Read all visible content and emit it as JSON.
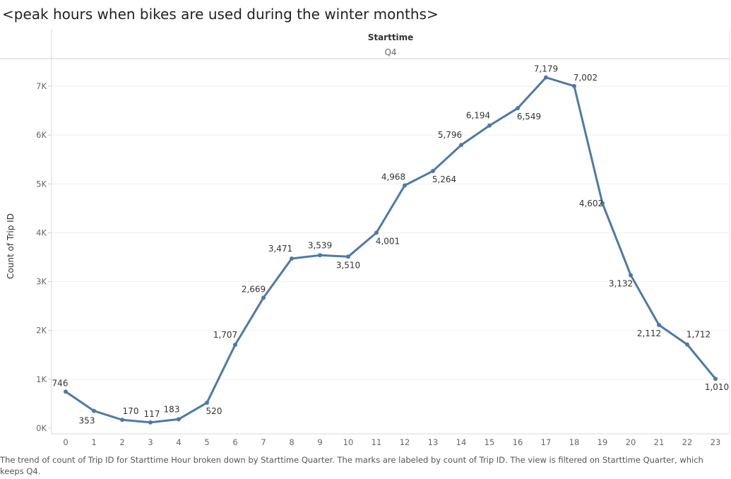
{
  "page": {
    "title": "<peak hours when bikes are used during the winter months>",
    "column_header": "Starttime",
    "column_value": "Q4",
    "caption": "The trend of count of Trip ID for Starttime Hour broken down by Starttime Quarter.  The marks are labeled by count of Trip ID. The view is filtered on Starttime Quarter, which keeps Q4."
  },
  "chart_data": {
    "type": "line",
    "title": "<peak hours when bikes are used during the winter months>",
    "xlabel": "",
    "ylabel": "Count of Trip ID",
    "x": [
      0,
      1,
      2,
      3,
      4,
      5,
      6,
      7,
      8,
      9,
      10,
      11,
      12,
      13,
      14,
      15,
      16,
      17,
      18,
      19,
      20,
      21,
      22,
      23
    ],
    "series": [
      {
        "values": [
          746,
          353,
          170,
          117,
          183,
          520,
          1707,
          2669,
          3471,
          3539,
          3510,
          4001,
          4968,
          5264,
          5796,
          6194,
          6549,
          7179,
          7002,
          4602,
          3132,
          2112,
          1712,
          1010
        ],
        "value_labels": [
          "746",
          "353",
          "170",
          "117",
          "183",
          "520",
          "1,707",
          "2,669",
          "3,471",
          "3,539",
          "3,510",
          "4,001",
          "4,968",
          "5,264",
          "5,796",
          "6,194",
          "6,549",
          "7,179",
          "7,002",
          "4,602",
          "3,132",
          "2,112",
          "1,712",
          "1,010"
        ]
      }
    ],
    "ylim": [
      0,
      7400
    ],
    "yticks": [
      0,
      1000,
      2000,
      3000,
      4000,
      5000,
      6000,
      7000
    ],
    "ytick_labels": [
      "0K",
      "1K",
      "2K",
      "3K",
      "4K",
      "5K",
      "6K",
      "7K"
    ],
    "xtick_labels": [
      "0",
      "1",
      "2",
      "3",
      "4",
      "5",
      "6",
      "7",
      "8",
      "9",
      "10",
      "11",
      "12",
      "13",
      "14",
      "15",
      "16",
      "17",
      "18",
      "19",
      "20",
      "21",
      "22",
      "23"
    ],
    "line_color": "#4e79a7",
    "grid": true,
    "legend": "none"
  }
}
